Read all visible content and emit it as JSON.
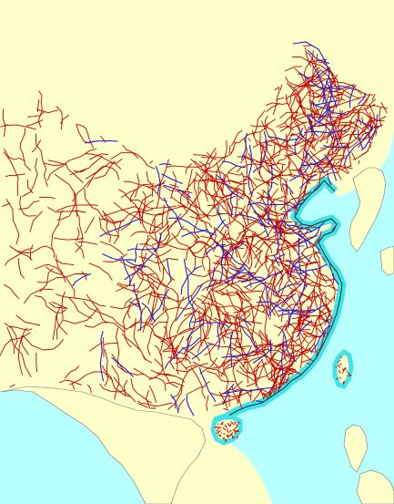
{
  "map": {
    "colors": {
      "land": "#FFFFC9",
      "sea": "#B8FFFF",
      "coast_shelf": "#3FE3E8",
      "border": "#000000",
      "roads": "#C40000",
      "railways": "#1E1ED2"
    },
    "features": [
      {
        "name": "land",
        "kind": "fill"
      },
      {
        "name": "sea",
        "kind": "water"
      },
      {
        "name": "road-network",
        "kind": "lines"
      },
      {
        "name": "railway-network",
        "kind": "lines"
      },
      {
        "name": "taiwan",
        "kind": "island"
      },
      {
        "name": "hainan",
        "kind": "island"
      }
    ]
  }
}
